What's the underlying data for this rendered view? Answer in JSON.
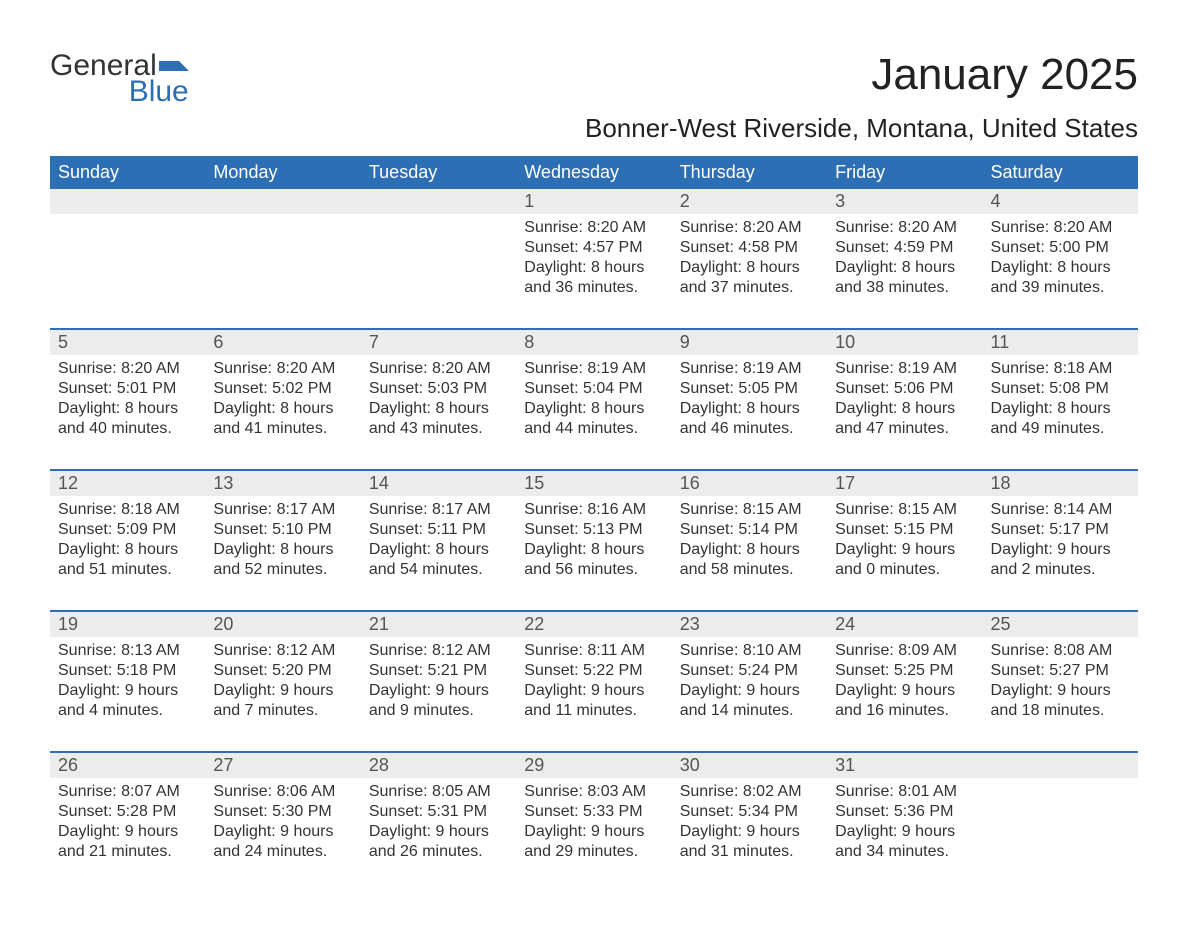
{
  "logo": {
    "part1": "General",
    "part2": "Blue",
    "brand_color": "#2d6fb5",
    "text_color": "#333333"
  },
  "title": "January 2025",
  "subtitle": "Bonner-West Riverside, Montana, United States",
  "colors": {
    "header_bg": "#2d6fb5",
    "header_text": "#ffffff",
    "daynum_bg": "#ececec",
    "daynum_text": "#555555",
    "body_text": "#333333",
    "week_border": "#2d6fb5",
    "page_bg": "#ffffff"
  },
  "typography": {
    "title_fontsize": 44,
    "subtitle_fontsize": 26,
    "dayhead_fontsize": 18,
    "daynum_fontsize": 18,
    "cell_fontsize": 16,
    "font_family": "Arial"
  },
  "day_headers": [
    "Sunday",
    "Monday",
    "Tuesday",
    "Wednesday",
    "Thursday",
    "Friday",
    "Saturday"
  ],
  "weeks": [
    [
      null,
      null,
      null,
      {
        "n": "1",
        "sunrise": "Sunrise: 8:20 AM",
        "sunset": "Sunset: 4:57 PM",
        "day1": "Daylight: 8 hours",
        "day2": "and 36 minutes."
      },
      {
        "n": "2",
        "sunrise": "Sunrise: 8:20 AM",
        "sunset": "Sunset: 4:58 PM",
        "day1": "Daylight: 8 hours",
        "day2": "and 37 minutes."
      },
      {
        "n": "3",
        "sunrise": "Sunrise: 8:20 AM",
        "sunset": "Sunset: 4:59 PM",
        "day1": "Daylight: 8 hours",
        "day2": "and 38 minutes."
      },
      {
        "n": "4",
        "sunrise": "Sunrise: 8:20 AM",
        "sunset": "Sunset: 5:00 PM",
        "day1": "Daylight: 8 hours",
        "day2": "and 39 minutes."
      }
    ],
    [
      {
        "n": "5",
        "sunrise": "Sunrise: 8:20 AM",
        "sunset": "Sunset: 5:01 PM",
        "day1": "Daylight: 8 hours",
        "day2": "and 40 minutes."
      },
      {
        "n": "6",
        "sunrise": "Sunrise: 8:20 AM",
        "sunset": "Sunset: 5:02 PM",
        "day1": "Daylight: 8 hours",
        "day2": "and 41 minutes."
      },
      {
        "n": "7",
        "sunrise": "Sunrise: 8:20 AM",
        "sunset": "Sunset: 5:03 PM",
        "day1": "Daylight: 8 hours",
        "day2": "and 43 minutes."
      },
      {
        "n": "8",
        "sunrise": "Sunrise: 8:19 AM",
        "sunset": "Sunset: 5:04 PM",
        "day1": "Daylight: 8 hours",
        "day2": "and 44 minutes."
      },
      {
        "n": "9",
        "sunrise": "Sunrise: 8:19 AM",
        "sunset": "Sunset: 5:05 PM",
        "day1": "Daylight: 8 hours",
        "day2": "and 46 minutes."
      },
      {
        "n": "10",
        "sunrise": "Sunrise: 8:19 AM",
        "sunset": "Sunset: 5:06 PM",
        "day1": "Daylight: 8 hours",
        "day2": "and 47 minutes."
      },
      {
        "n": "11",
        "sunrise": "Sunrise: 8:18 AM",
        "sunset": "Sunset: 5:08 PM",
        "day1": "Daylight: 8 hours",
        "day2": "and 49 minutes."
      }
    ],
    [
      {
        "n": "12",
        "sunrise": "Sunrise: 8:18 AM",
        "sunset": "Sunset: 5:09 PM",
        "day1": "Daylight: 8 hours",
        "day2": "and 51 minutes."
      },
      {
        "n": "13",
        "sunrise": "Sunrise: 8:17 AM",
        "sunset": "Sunset: 5:10 PM",
        "day1": "Daylight: 8 hours",
        "day2": "and 52 minutes."
      },
      {
        "n": "14",
        "sunrise": "Sunrise: 8:17 AM",
        "sunset": "Sunset: 5:11 PM",
        "day1": "Daylight: 8 hours",
        "day2": "and 54 minutes."
      },
      {
        "n": "15",
        "sunrise": "Sunrise: 8:16 AM",
        "sunset": "Sunset: 5:13 PM",
        "day1": "Daylight: 8 hours",
        "day2": "and 56 minutes."
      },
      {
        "n": "16",
        "sunrise": "Sunrise: 8:15 AM",
        "sunset": "Sunset: 5:14 PM",
        "day1": "Daylight: 8 hours",
        "day2": "and 58 minutes."
      },
      {
        "n": "17",
        "sunrise": "Sunrise: 8:15 AM",
        "sunset": "Sunset: 5:15 PM",
        "day1": "Daylight: 9 hours",
        "day2": "and 0 minutes."
      },
      {
        "n": "18",
        "sunrise": "Sunrise: 8:14 AM",
        "sunset": "Sunset: 5:17 PM",
        "day1": "Daylight: 9 hours",
        "day2": "and 2 minutes."
      }
    ],
    [
      {
        "n": "19",
        "sunrise": "Sunrise: 8:13 AM",
        "sunset": "Sunset: 5:18 PM",
        "day1": "Daylight: 9 hours",
        "day2": "and 4 minutes."
      },
      {
        "n": "20",
        "sunrise": "Sunrise: 8:12 AM",
        "sunset": "Sunset: 5:20 PM",
        "day1": "Daylight: 9 hours",
        "day2": "and 7 minutes."
      },
      {
        "n": "21",
        "sunrise": "Sunrise: 8:12 AM",
        "sunset": "Sunset: 5:21 PM",
        "day1": "Daylight: 9 hours",
        "day2": "and 9 minutes."
      },
      {
        "n": "22",
        "sunrise": "Sunrise: 8:11 AM",
        "sunset": "Sunset: 5:22 PM",
        "day1": "Daylight: 9 hours",
        "day2": "and 11 minutes."
      },
      {
        "n": "23",
        "sunrise": "Sunrise: 8:10 AM",
        "sunset": "Sunset: 5:24 PM",
        "day1": "Daylight: 9 hours",
        "day2": "and 14 minutes."
      },
      {
        "n": "24",
        "sunrise": "Sunrise: 8:09 AM",
        "sunset": "Sunset: 5:25 PM",
        "day1": "Daylight: 9 hours",
        "day2": "and 16 minutes."
      },
      {
        "n": "25",
        "sunrise": "Sunrise: 8:08 AM",
        "sunset": "Sunset: 5:27 PM",
        "day1": "Daylight: 9 hours",
        "day2": "and 18 minutes."
      }
    ],
    [
      {
        "n": "26",
        "sunrise": "Sunrise: 8:07 AM",
        "sunset": "Sunset: 5:28 PM",
        "day1": "Daylight: 9 hours",
        "day2": "and 21 minutes."
      },
      {
        "n": "27",
        "sunrise": "Sunrise: 8:06 AM",
        "sunset": "Sunset: 5:30 PM",
        "day1": "Daylight: 9 hours",
        "day2": "and 24 minutes."
      },
      {
        "n": "28",
        "sunrise": "Sunrise: 8:05 AM",
        "sunset": "Sunset: 5:31 PM",
        "day1": "Daylight: 9 hours",
        "day2": "and 26 minutes."
      },
      {
        "n": "29",
        "sunrise": "Sunrise: 8:03 AM",
        "sunset": "Sunset: 5:33 PM",
        "day1": "Daylight: 9 hours",
        "day2": "and 29 minutes."
      },
      {
        "n": "30",
        "sunrise": "Sunrise: 8:02 AM",
        "sunset": "Sunset: 5:34 PM",
        "day1": "Daylight: 9 hours",
        "day2": "and 31 minutes."
      },
      {
        "n": "31",
        "sunrise": "Sunrise: 8:01 AM",
        "sunset": "Sunset: 5:36 PM",
        "day1": "Daylight: 9 hours",
        "day2": "and 34 minutes."
      },
      null
    ]
  ]
}
